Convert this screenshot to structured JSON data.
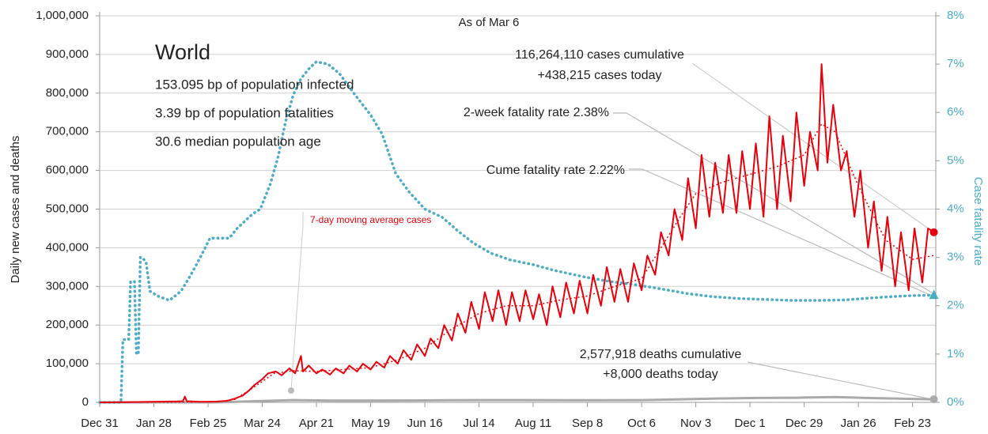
{
  "chart_data": {
    "type": "line",
    "y_label": "Daily new cases and deaths",
    "y2_label": "Case fatality rate",
    "xlim": [
      0,
      432
    ],
    "xticks": [
      {
        "value": 0,
        "label": "Dec 31"
      },
      {
        "value": 28,
        "label": "Jan 28"
      },
      {
        "value": 56,
        "label": "Feb 25"
      },
      {
        "value": 84,
        "label": "Mar 24"
      },
      {
        "value": 112,
        "label": "Apr 21"
      },
      {
        "value": 140,
        "label": "May 19"
      },
      {
        "value": 168,
        "label": "Jun 16"
      },
      {
        "value": 196,
        "label": "Jul 14"
      },
      {
        "value": 224,
        "label": "Aug 11"
      },
      {
        "value": 252,
        "label": "Sep 8"
      },
      {
        "value": 280,
        "label": "Oct 6"
      },
      {
        "value": 308,
        "label": "Nov 3"
      },
      {
        "value": 336,
        "label": "Dec 1"
      },
      {
        "value": 364,
        "label": "Dec 29"
      },
      {
        "value": 392,
        "label": "Jan 26"
      },
      {
        "value": 420,
        "label": "Feb 23"
      }
    ],
    "ylim": [
      0,
      1000000
    ],
    "yticks": [
      0,
      {
        "value": 100000,
        "label": "100,000"
      },
      {
        "value": 200000,
        "label": "200,000"
      },
      {
        "value": 300000,
        "label": "300,000"
      },
      {
        "value": 400000,
        "label": "400,000"
      },
      {
        "value": 500000,
        "label": "500,000"
      },
      {
        "value": 600000,
        "label": "600,000"
      },
      {
        "value": 700000,
        "label": "700,000"
      },
      {
        "value": 800000,
        "label": "800,000"
      },
      {
        "value": 900000,
        "label": "900,000"
      },
      {
        "value": 1000000,
        "label": "1,000,000"
      }
    ],
    "y2lim": [
      0,
      8
    ],
    "y2ticks": [
      {
        "value": 0,
        "label": "0%"
      },
      {
        "value": 1,
        "label": "1%"
      },
      {
        "value": 2,
        "label": "2%"
      },
      {
        "value": 3,
        "label": "3%"
      },
      {
        "value": 4,
        "label": "4%"
      },
      {
        "value": 5,
        "label": "5%"
      },
      {
        "value": 6,
        "label": "6%"
      },
      {
        "value": 7,
        "label": "7%"
      },
      {
        "value": 8,
        "label": "8%"
      }
    ],
    "grid": true,
    "annotations": [
      "As of Mar 6",
      "World",
      "153.095 bp of population infected",
      "3.39 bp of population fatalities",
      "30.6 median population age",
      "116,264,110 cases cumulative",
      "+438,215 cases today",
      "2-week fatality rate 2.38%",
      "Cume fatality rate 2.22%",
      "2,577,918 deaths cumulative",
      "+8,000 deaths today"
    ],
    "series": [
      {
        "color": "#e8000b",
        "style": "solid",
        "x": [
          0,
          20,
          40,
          43,
          44,
          45,
          52,
          60,
          66,
          70,
          74,
          77,
          80,
          84,
          87,
          91,
          94,
          98,
          101,
          104,
          105,
          108,
          112,
          115,
          119,
          122,
          126,
          129,
          133,
          136,
          140,
          143,
          147,
          150,
          154,
          157,
          161,
          164,
          168,
          171,
          175,
          178,
          182,
          185,
          189,
          192,
          196,
          199,
          203,
          206,
          210,
          213,
          217,
          220,
          224,
          227,
          231,
          234,
          238,
          241,
          245,
          248,
          252,
          255,
          259,
          262,
          266,
          269,
          273,
          276,
          280,
          283,
          287,
          290,
          294,
          297,
          301,
          304,
          308,
          311,
          315,
          318,
          322,
          325,
          329,
          332,
          336,
          339,
          343,
          346,
          350,
          353,
          357,
          360,
          364,
          367,
          371,
          373,
          376,
          379,
          383,
          386,
          390,
          393,
          397,
          400,
          404,
          407,
          411,
          414,
          418,
          421,
          425,
          428,
          431
        ],
        "values": [
          0,
          1000,
          2500,
          3000,
          15000,
          3000,
          1500,
          2000,
          4000,
          10000,
          18000,
          30000,
          45000,
          60000,
          75000,
          80000,
          70000,
          88000,
          75000,
          120000,
          80000,
          95000,
          75000,
          85000,
          72000,
          88000,
          75000,
          95000,
          80000,
          100000,
          85000,
          105000,
          90000,
          120000,
          100000,
          135000,
          110000,
          150000,
          120000,
          165000,
          140000,
          200000,
          160000,
          230000,
          180000,
          260000,
          190000,
          285000,
          210000,
          290000,
          200000,
          285000,
          210000,
          290000,
          215000,
          280000,
          200000,
          300000,
          220000,
          310000,
          230000,
          315000,
          230000,
          330000,
          250000,
          350000,
          260000,
          345000,
          260000,
          360000,
          290000,
          380000,
          330000,
          440000,
          380000,
          500000,
          420000,
          580000,
          450000,
          640000,
          480000,
          620000,
          490000,
          640000,
          490000,
          650000,
          500000,
          670000,
          480000,
          740000,
          500000,
          690000,
          520000,
          750000,
          560000,
          700000,
          600000,
          875000,
          620000,
          770000,
          600000,
          650000,
          480000,
          600000,
          400000,
          520000,
          340000,
          480000,
          300000,
          440000,
          290000,
          450000,
          310000,
          450000,
          440000
        ]
      },
      {
        "name": "7-day moving average cases",
        "color": "#e8000b",
        "style": "dotted",
        "x": [
          0,
          60,
          70,
          80,
          90,
          100,
          112,
          126,
          140,
          154,
          168,
          182,
          196,
          210,
          224,
          238,
          252,
          266,
          280,
          290,
          300,
          308,
          322,
          336,
          350,
          364,
          373,
          380,
          392,
          406,
          420,
          431
        ],
        "values": [
          0,
          1500,
          8000,
          40000,
          75000,
          82000,
          80000,
          85000,
          90000,
          110000,
          140000,
          190000,
          230000,
          250000,
          250000,
          265000,
          275000,
          300000,
          320000,
          400000,
          480000,
          540000,
          570000,
          590000,
          610000,
          640000,
          720000,
          700000,
          560000,
          420000,
          370000,
          380000
        ]
      },
      {
        "color": "#4bacc6",
        "style": "dots",
        "axis": "y2",
        "x": [
          0,
          11,
          12,
          14,
          15,
          16,
          18,
          19,
          20,
          21,
          22,
          24,
          26,
          30,
          36,
          42,
          47,
          52,
          57,
          62,
          67,
          71,
          75,
          79,
          83,
          88,
          92,
          96,
          100,
          104,
          108,
          112,
          118,
          124,
          132,
          140,
          146,
          153,
          160,
          168,
          177,
          185,
          193,
          202,
          212,
          224,
          235,
          250,
          264,
          276,
          290,
          304,
          316,
          330,
          344,
          357,
          372,
          385,
          398,
          410,
          420,
          431
        ],
        "values": [
          0,
          0,
          1.3,
          1.3,
          1.3,
          2.5,
          2.5,
          1.0,
          1.0,
          3.0,
          3.0,
          2.9,
          2.3,
          2.2,
          2.11,
          2.3,
          2.63,
          3.0,
          3.4,
          3.4,
          3.4,
          3.6,
          3.75,
          3.9,
          4.0,
          4.5,
          5.05,
          5.8,
          6.36,
          6.7,
          6.9,
          7.05,
          7.0,
          6.8,
          6.36,
          5.95,
          5.55,
          4.73,
          4.35,
          4.0,
          3.83,
          3.55,
          3.3,
          3.09,
          2.95,
          2.85,
          2.73,
          2.6,
          2.5,
          2.44,
          2.35,
          2.25,
          2.19,
          2.15,
          2.13,
          2.11,
          2.11,
          2.12,
          2.16,
          2.19,
          2.21,
          2.22
        ]
      },
      {
        "color": "#aaaaaa",
        "style": "solid",
        "x": [
          0,
          60,
          80,
          100,
          120,
          140,
          160,
          180,
          200,
          220,
          240,
          260,
          280,
          300,
          320,
          340,
          360,
          380,
          400,
          420,
          431
        ],
        "values": [
          0,
          100,
          3000,
          6000,
          4500,
          4500,
          5000,
          5500,
          6000,
          6000,
          5500,
          5500,
          6000,
          8000,
          10000,
          11500,
          12000,
          14000,
          11000,
          9000,
          8000
        ]
      }
    ]
  }
}
